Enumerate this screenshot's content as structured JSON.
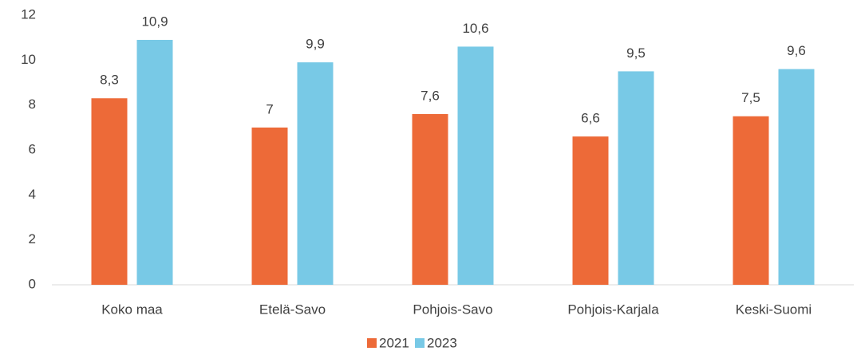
{
  "chart_data": {
    "type": "bar",
    "categories": [
      "Koko maa",
      "Etelä-Savo",
      "Pohjois-Savo",
      "Pohjois-Karjala",
      "Keski-Suomi"
    ],
    "series": [
      {
        "name": "2021",
        "color": "#ed6a38",
        "values": [
          8.3,
          7,
          7.6,
          6.6,
          7.5
        ],
        "value_labels": [
          "8,3",
          "7",
          "7,6",
          "6,6",
          "7,5"
        ]
      },
      {
        "name": "2023",
        "color": "#78c9e6",
        "values": [
          10.9,
          9.9,
          10.6,
          9.5,
          9.6
        ],
        "value_labels": [
          "10,9",
          "9,9",
          "10,6",
          "9,5",
          "9,6"
        ]
      }
    ],
    "ylim": [
      0,
      12
    ],
    "yticks": [
      0,
      2,
      4,
      6,
      8,
      10,
      12
    ],
    "grid": false,
    "legend": "bottom"
  }
}
